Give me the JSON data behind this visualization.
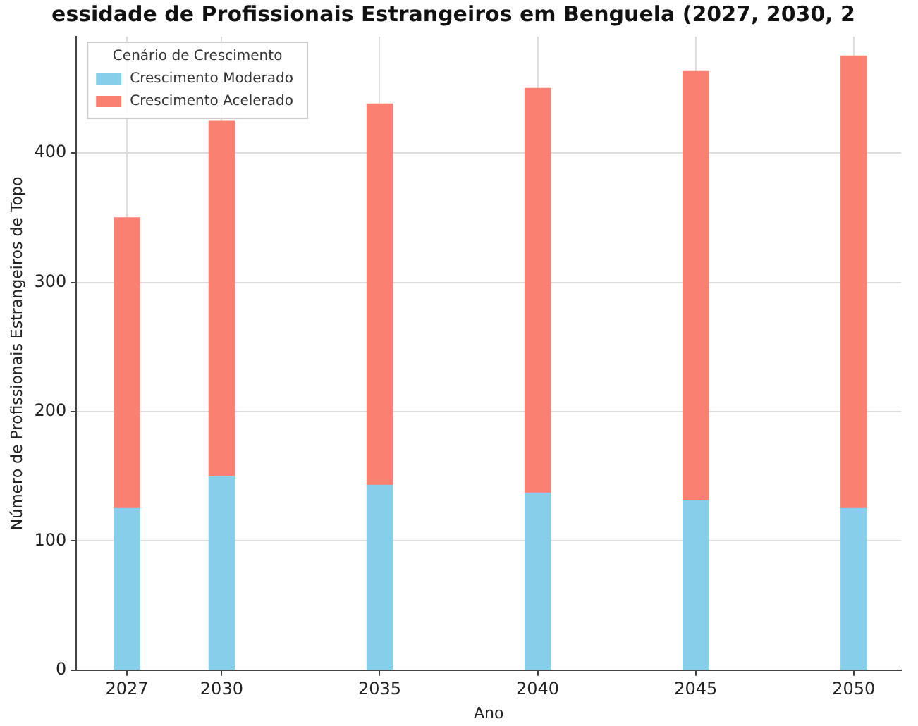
{
  "chart_data": {
    "type": "bar",
    "title": "essidade de Profissionais Estrangeiros em Benguela (2027, 2030, 2",
    "xlabel": "Ano",
    "ylabel": "Número de Profissionais Estrangeiros de Topo",
    "legend_title": "Cenário de Crescimento",
    "x": [
      2027,
      2030,
      2035,
      2040,
      2045,
      2050
    ],
    "stacked": true,
    "series": [
      {
        "name": "Crescimento Moderado",
        "color": "#87ceeb",
        "values": [
          125,
          150,
          143,
          137,
          131,
          125
        ]
      },
      {
        "name": "Crescimento Acelerado",
        "color": "#fa8072",
        "values": [
          225,
          275,
          295,
          313,
          332,
          350
        ]
      }
    ],
    "xlim": [
      2025.4,
      2051.5
    ],
    "xticks": [
      2027,
      2030,
      2035,
      2040,
      2045,
      2050
    ],
    "ylim": [
      0,
      490
    ],
    "yticks": [
      0,
      100,
      200,
      300,
      400
    ],
    "grid": true,
    "legend": "top left"
  }
}
